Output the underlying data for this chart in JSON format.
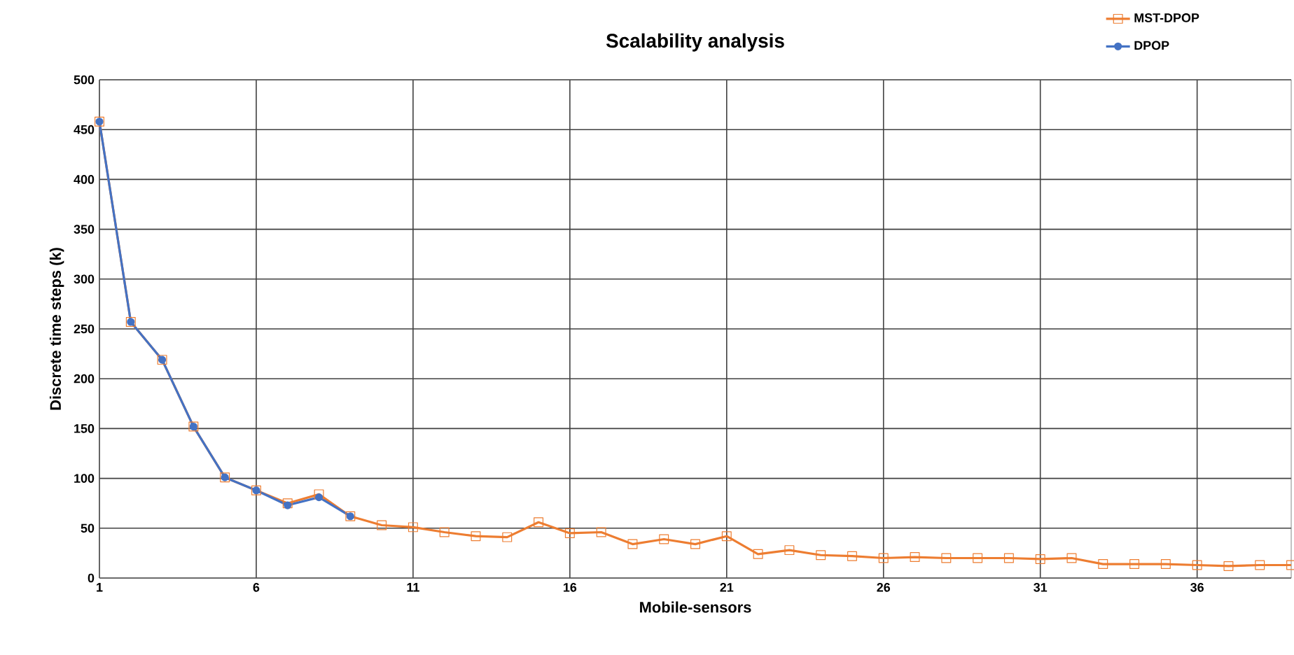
{
  "chart_data": {
    "type": "line",
    "title": "Scalability analysis",
    "xlabel": "Mobile-sensors",
    "ylabel": "Discrete time steps (k)",
    "x": [
      1,
      2,
      3,
      4,
      5,
      6,
      7,
      8,
      9,
      10,
      11,
      12,
      13,
      14,
      15,
      16,
      17,
      18,
      19,
      20,
      21,
      22,
      23,
      24,
      25,
      26,
      27,
      28,
      29,
      30,
      31,
      32,
      33,
      34,
      35,
      36,
      37,
      38,
      39
    ],
    "series": [
      {
        "name": "MST-DPOP",
        "color": "#ed7d31",
        "marker": "square",
        "values": [
          458,
          257,
          219,
          152,
          101,
          88,
          75,
          84,
          62,
          53,
          51,
          46,
          42,
          41,
          56,
          45,
          46,
          34,
          39,
          34,
          42,
          24,
          28,
          23,
          22,
          20,
          21,
          20,
          20,
          20,
          19,
          20,
          14,
          14,
          14,
          13,
          12,
          13,
          13
        ]
      },
      {
        "name": "DPOP",
        "color": "#4472c4",
        "marker": "circle",
        "x": [
          1,
          2,
          3,
          4,
          5,
          6,
          7,
          8,
          9
        ],
        "values": [
          458,
          257,
          219,
          152,
          101,
          88,
          73,
          81,
          62
        ]
      }
    ],
    "xlim": [
      1,
      39
    ],
    "xticks": [
      1,
      6,
      11,
      16,
      21,
      26,
      31,
      36
    ],
    "ylim": [
      0,
      500
    ],
    "yticks": [
      0,
      50,
      100,
      150,
      200,
      250,
      300,
      350,
      400,
      450,
      500
    ],
    "grid": true,
    "legend": "top right"
  }
}
